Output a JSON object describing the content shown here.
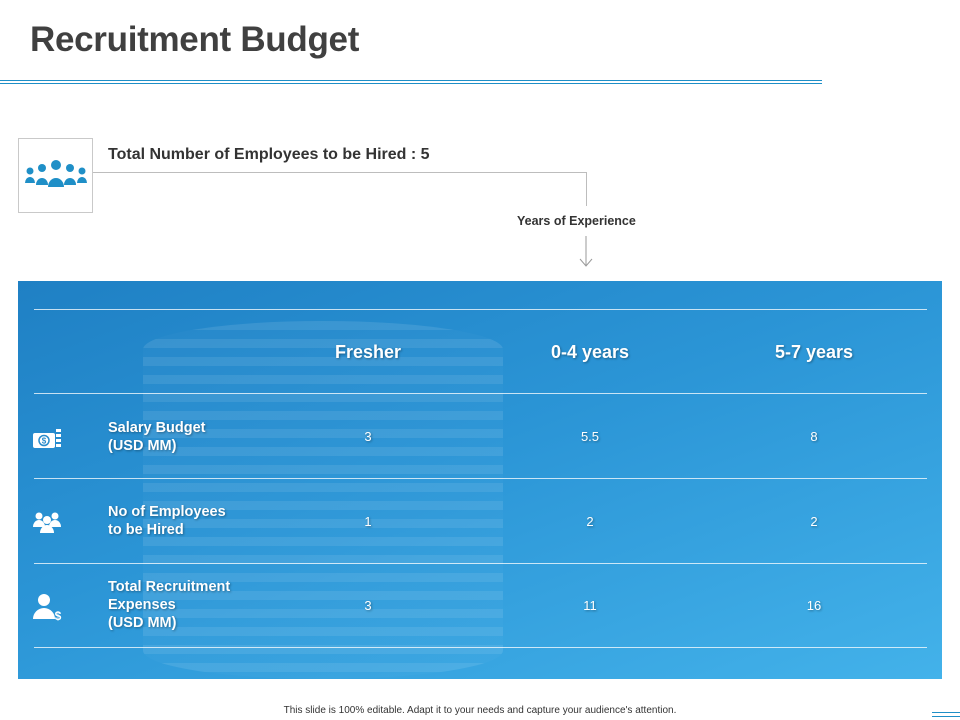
{
  "title": "Recruitment Budget",
  "total_employees_line": "Total Number of Employees to be Hired : 5",
  "years_of_experience_label": "Years of Experience",
  "table": {
    "columns": [
      "Fresher",
      "0-4 years",
      "5-7 years"
    ],
    "rows": [
      {
        "icon": "money-icon",
        "label_lines": [
          "Salary Budget",
          "(USD MM)"
        ],
        "values": [
          "3",
          "5.5",
          "8"
        ]
      },
      {
        "icon": "team-icon",
        "label_lines": [
          "No of Employees",
          "to be Hired"
        ],
        "values": [
          "1",
          "2",
          "2"
        ]
      },
      {
        "icon": "person-dollar-icon",
        "label_lines": [
          "Total Recruitment",
          "Expenses",
          "(USD MM)"
        ],
        "values": [
          "3",
          "11",
          "16"
        ]
      }
    ]
  },
  "footer": "This slide is 100% editable.  Adapt it to your needs and capture your audience's attention.",
  "colors": {
    "accent": "#1f8fc7",
    "panel_dark": "#1f80c4",
    "panel_light": "#43b2ea",
    "title": "#404040"
  }
}
